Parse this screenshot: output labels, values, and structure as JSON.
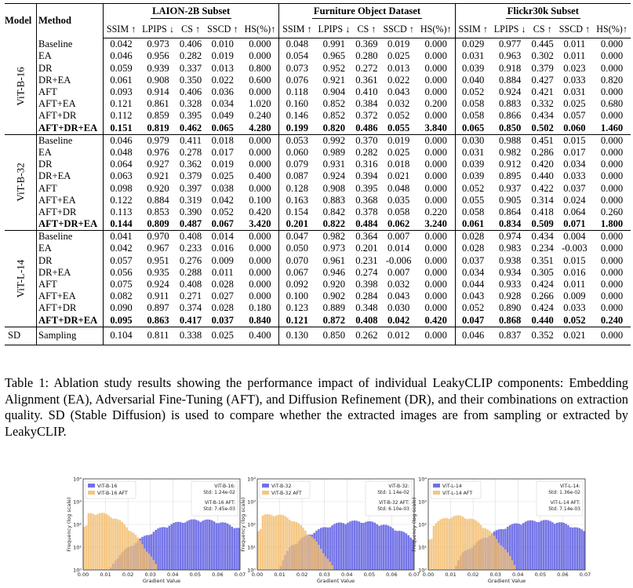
{
  "table": {
    "header": {
      "model": "Model",
      "method": "Method",
      "datasets": [
        "LAION-2B Subset",
        "Furniture Object Dataset",
        "Flickr30k Subset"
      ],
      "metrics": [
        "SSIM ↑",
        "LPIPS ↓",
        "CS ↑",
        "SSCD ↑",
        "HS(%)↑"
      ]
    },
    "groups": [
      {
        "model": "ViT-B-16",
        "rows": [
          {
            "method": "Baseline",
            "bold": false,
            "values": [
              "0.042",
              "0.973",
              "0.406",
              "0.010",
              "0.000",
              "0.048",
              "0.991",
              "0.369",
              "0.019",
              "0.000",
              "0.029",
              "0.977",
              "0.445",
              "0.011",
              "0.000"
            ]
          },
          {
            "method": "EA",
            "bold": false,
            "values": [
              "0.046",
              "0.956",
              "0.282",
              "0.019",
              "0.000",
              "0.054",
              "0.965",
              "0.280",
              "0.025",
              "0.000",
              "0.031",
              "0.963",
              "0.302",
              "0.011",
              "0.000"
            ]
          },
          {
            "method": "DR",
            "bold": false,
            "values": [
              "0.059",
              "0.939",
              "0.337",
              "0.013",
              "0.800",
              "0.073",
              "0.952",
              "0.272",
              "0.013",
              "0.000",
              "0.039",
              "0.918",
              "0.379",
              "0.023",
              "0.000"
            ]
          },
          {
            "method": "DR+EA",
            "bold": false,
            "values": [
              "0.061",
              "0.908",
              "0.350",
              "0.022",
              "0.600",
              "0.076",
              "0.921",
              "0.361",
              "0.022",
              "0.000",
              "0.040",
              "0.884",
              "0.427",
              "0.033",
              "0.820"
            ]
          },
          {
            "method": "AFT",
            "bold": false,
            "values": [
              "0.093",
              "0.914",
              "0.406",
              "0.036",
              "0.000",
              "0.118",
              "0.904",
              "0.410",
              "0.043",
              "0.000",
              "0.052",
              "0.924",
              "0.421",
              "0.031",
              "0.000"
            ]
          },
          {
            "method": "AFT+EA",
            "bold": false,
            "values": [
              "0.121",
              "0.861",
              "0.328",
              "0.034",
              "1.020",
              "0.160",
              "0.852",
              "0.384",
              "0.032",
              "0.200",
              "0.058",
              "0.883",
              "0.332",
              "0.025",
              "0.680"
            ]
          },
          {
            "method": "AFT+DR",
            "bold": false,
            "values": [
              "0.112",
              "0.859",
              "0.395",
              "0.049",
              "0.240",
              "0.146",
              "0.852",
              "0.372",
              "0.052",
              "0.000",
              "0.058",
              "0.866",
              "0.434",
              "0.057",
              "0.000"
            ]
          },
          {
            "method": "AFT+DR+EA",
            "bold": true,
            "values": [
              "0.151",
              "0.819",
              "0.462",
              "0.065",
              "4.280",
              "0.199",
              "0.820",
              "0.486",
              "0.055",
              "3.840",
              "0.065",
              "0.850",
              "0.502",
              "0.060",
              "1.460"
            ]
          }
        ]
      },
      {
        "model": "ViT-B-32",
        "rows": [
          {
            "method": "Baseline",
            "bold": false,
            "values": [
              "0.046",
              "0.979",
              "0.411",
              "0.018",
              "0.000",
              "0.053",
              "0.992",
              "0.370",
              "0.019",
              "0.000",
              "0.030",
              "0.988",
              "0.451",
              "0.015",
              "0.000"
            ]
          },
          {
            "method": "EA",
            "bold": false,
            "values": [
              "0.048",
              "0.976",
              "0.278",
              "0.017",
              "0.000",
              "0.060",
              "0.989",
              "0.282",
              "0.025",
              "0.000",
              "0.031",
              "0.982",
              "0.286",
              "0.017",
              "0.000"
            ]
          },
          {
            "method": "DR",
            "bold": false,
            "values": [
              "0.064",
              "0.927",
              "0.362",
              "0.019",
              "0.000",
              "0.079",
              "0.931",
              "0.316",
              "0.018",
              "0.000",
              "0.039",
              "0.912",
              "0.420",
              "0.034",
              "0.000"
            ]
          },
          {
            "method": "DR+EA",
            "bold": false,
            "values": [
              "0.063",
              "0.921",
              "0.379",
              "0.025",
              "0.400",
              "0.087",
              "0.924",
              "0.394",
              "0.021",
              "0.000",
              "0.039",
              "0.895",
              "0.440",
              "0.033",
              "0.000"
            ]
          },
          {
            "method": "AFT",
            "bold": false,
            "values": [
              "0.098",
              "0.920",
              "0.397",
              "0.038",
              "0.000",
              "0.128",
              "0.908",
              "0.395",
              "0.048",
              "0.000",
              "0.052",
              "0.937",
              "0.422",
              "0.037",
              "0.000"
            ]
          },
          {
            "method": "AFT+EA",
            "bold": false,
            "values": [
              "0.122",
              "0.884",
              "0.319",
              "0.042",
              "0.100",
              "0.163",
              "0.883",
              "0.368",
              "0.035",
              "0.000",
              "0.055",
              "0.905",
              "0.314",
              "0.024",
              "0.000"
            ]
          },
          {
            "method": "AFT+DR",
            "bold": false,
            "values": [
              "0.113",
              "0.853",
              "0.390",
              "0.052",
              "0.420",
              "0.154",
              "0.842",
              "0.378",
              "0.058",
              "0.220",
              "0.058",
              "0.864",
              "0.418",
              "0.064",
              "0.260"
            ]
          },
          {
            "method": "AFT+DR+EA",
            "bold": true,
            "values": [
              "0.144",
              "0.809",
              "0.487",
              "0.067",
              "3.420",
              "0.201",
              "0.822",
              "0.484",
              "0.062",
              "3.240",
              "0.061",
              "0.834",
              "0.509",
              "0.071",
              "1.800"
            ]
          }
        ]
      },
      {
        "model": "ViT-L-14",
        "rows": [
          {
            "method": "Baseline",
            "bold": false,
            "values": [
              "0.041",
              "0.970",
              "0.408",
              "0.014",
              "0.000",
              "0.047",
              "0.982",
              "0.364",
              "0.007",
              "0.000",
              "0.028",
              "0.974",
              "0.434",
              "0.004",
              "0.000"
            ]
          },
          {
            "method": "EA",
            "bold": false,
            "values": [
              "0.042",
              "0.967",
              "0.233",
              "0.016",
              "0.000",
              "0.050",
              "0.973",
              "0.201",
              "0.014",
              "0.000",
              "0.028",
              "0.983",
              "0.234",
              "-0.003",
              "0.000"
            ]
          },
          {
            "method": "DR",
            "bold": false,
            "values": [
              "0.057",
              "0.951",
              "0.276",
              "0.009",
              "0.000",
              "0.070",
              "0.961",
              "0.231",
              "-0.006",
              "0.000",
              "0.037",
              "0.938",
              "0.351",
              "0.015",
              "0.000"
            ]
          },
          {
            "method": "DR+EA",
            "bold": false,
            "values": [
              "0.056",
              "0.935",
              "0.288",
              "0.011",
              "0.000",
              "0.067",
              "0.946",
              "0.274",
              "0.007",
              "0.000",
              "0.034",
              "0.934",
              "0.305",
              "0.016",
              "0.000"
            ]
          },
          {
            "method": "AFT",
            "bold": false,
            "values": [
              "0.075",
              "0.924",
              "0.408",
              "0.028",
              "0.000",
              "0.092",
              "0.920",
              "0.398",
              "0.032",
              "0.000",
              "0.044",
              "0.933",
              "0.424",
              "0.011",
              "0.000"
            ]
          },
          {
            "method": "AFT+EA",
            "bold": false,
            "values": [
              "0.082",
              "0.911",
              "0.271",
              "0.027",
              "0.000",
              "0.100",
              "0.902",
              "0.284",
              "0.043",
              "0.000",
              "0.043",
              "0.928",
              "0.266",
              "0.009",
              "0.000"
            ]
          },
          {
            "method": "AFT+DR",
            "bold": false,
            "values": [
              "0.090",
              "0.897",
              "0.374",
              "0.028",
              "0.180",
              "0.123",
              "0.889",
              "0.348",
              "0.030",
              "0.000",
              "0.052",
              "0.890",
              "0.424",
              "0.033",
              "0.000"
            ]
          },
          {
            "method": "AFT+DR+EA",
            "bold": true,
            "values": [
              "0.095",
              "0.863",
              "0.417",
              "0.037",
              "0.840",
              "0.121",
              "0.872",
              "0.408",
              "0.042",
              "0.420",
              "0.047",
              "0.868",
              "0.440",
              "0.052",
              "0.240"
            ]
          }
        ]
      }
    ],
    "sd_row": {
      "model": "SD",
      "method": "Sampling",
      "values": [
        "0.104",
        "0.811",
        "0.338",
        "0.025",
        "0.400",
        "0.130",
        "0.850",
        "0.262",
        "0.012",
        "0.000",
        "0.046",
        "0.837",
        "0.352",
        "0.021",
        "0.000"
      ]
    }
  },
  "caption": "Table 1: Ablation study results showing the performance impact of individual LeakyCLIP components: Embedding Alignment (EA), Adversarial Fine-Tuning (AFT), and Diffusion Refinement (DR), and their combinations on extraction quality. SD (Stable Diffusion) is used to compare whether the extracted images are from sampling or extracted by LeakyCLIP.",
  "chart_data": [
    {
      "type": "bar",
      "xlabel": "Gradient Value",
      "ylabel": "Frequency (log scale)",
      "log_y": true,
      "xlim": [
        0.0,
        0.07
      ],
      "ylim": [
        1,
        10000
      ],
      "x_ticks": [
        "0.00",
        "0.01",
        "0.02",
        "0.03",
        "0.04",
        "0.05",
        "0.06",
        "0.07"
      ],
      "y_ticks": [
        "10⁰",
        "10¹",
        "10²",
        "10³",
        "10⁴"
      ],
      "legend_position": "top-left",
      "series": [
        {
          "name": "ViT-B-16",
          "color": "#5757e0",
          "peak_x": 0.052,
          "peak_y": 150
        },
        {
          "name": "ViT-B-16 AFT",
          "color": "#f2bc6b",
          "peak_x": 0.006,
          "peak_y": 300
        }
      ],
      "stats_box": [
        "ViT-B-16:",
        "Std: 1.24e-02",
        "ViT-B-16 AFT:",
        "Std: 7.45e-03"
      ]
    },
    {
      "type": "bar",
      "xlabel": "Gradient Value",
      "ylabel": "Frequency (log scale)",
      "log_y": true,
      "xlim": [
        0.0,
        0.07
      ],
      "ylim": [
        1,
        10000
      ],
      "x_ticks": [
        "0.00",
        "0.01",
        "0.02",
        "0.03",
        "0.04",
        "0.05",
        "0.06",
        "0.07"
      ],
      "y_ticks": [
        "10⁰",
        "10¹",
        "10²",
        "10³",
        "10⁴"
      ],
      "legend_position": "top-left",
      "series": [
        {
          "name": "ViT-B-32",
          "color": "#5757e0",
          "peak_x": 0.045,
          "peak_y": 130
        },
        {
          "name": "ViT-B-32 AFT",
          "color": "#f2bc6b",
          "peak_x": 0.007,
          "peak_y": 260
        }
      ],
      "stats_box": [
        "ViT-B-32:",
        "Std: 1.14e-02",
        "ViT-B-32 AFT:",
        "Std: 6.10e-03"
      ]
    },
    {
      "type": "bar",
      "xlabel": "Gradient Value",
      "ylabel": "Frequency (log scale)",
      "log_y": true,
      "xlim": [
        0.0,
        0.07
      ],
      "ylim": [
        1,
        10000
      ],
      "x_ticks": [
        "0.00",
        "0.01",
        "0.02",
        "0.03",
        "0.04",
        "0.05",
        "0.06",
        "0.07"
      ],
      "y_ticks": [
        "10⁰",
        "10¹",
        "10²",
        "10³",
        "10⁴"
      ],
      "legend_position": "top-left",
      "series": [
        {
          "name": "ViT-L-14",
          "color": "#5757e0",
          "peak_x": 0.05,
          "peak_y": 140
        },
        {
          "name": "ViT-L-14 AFT",
          "color": "#f2bc6b",
          "peak_x": 0.013,
          "peak_y": 220
        }
      ],
      "stats_box": [
        "ViT-L-14:",
        "Std: 1.36e-02",
        "ViT-L-14 AFT:",
        "Std: 7.14e-03"
      ]
    }
  ]
}
